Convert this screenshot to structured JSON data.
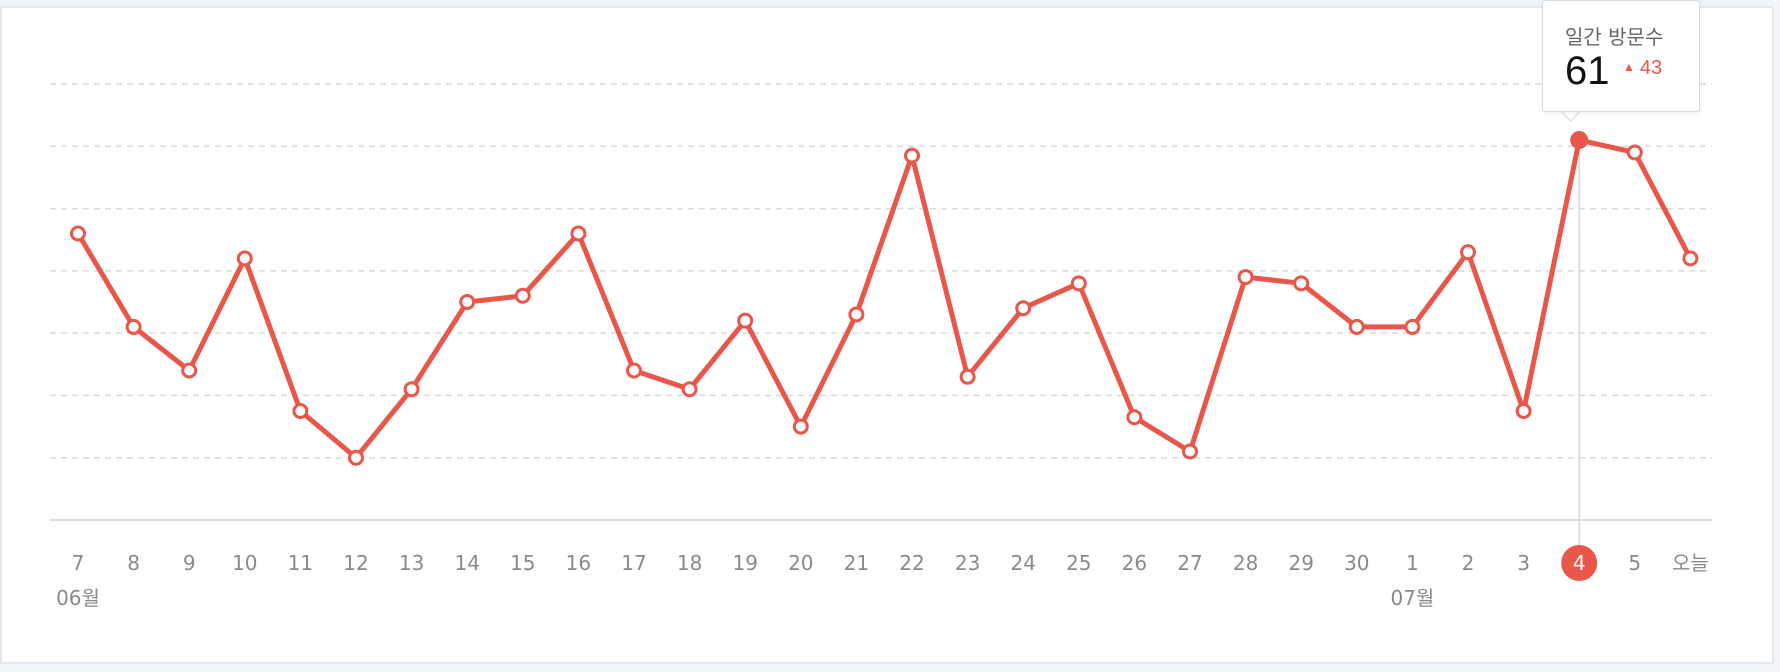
{
  "chart_data": {
    "type": "line",
    "title": "",
    "xlabel": "",
    "ylabel": "",
    "grid": true,
    "colors": {
      "line": "#e8574a",
      "grid": "#dadada",
      "axis": "#d8dde2",
      "tick_text": "#8a8a8a"
    },
    "ylim": [
      0,
      70
    ],
    "categories": [
      "7",
      "8",
      "9",
      "10",
      "11",
      "12",
      "13",
      "14",
      "15",
      "16",
      "17",
      "18",
      "19",
      "20",
      "21",
      "22",
      "23",
      "24",
      "25",
      "26",
      "27",
      "28",
      "29",
      "30",
      "1",
      "2",
      "3",
      "4",
      "5",
      "오늘"
    ],
    "month_labels": [
      {
        "index": 0,
        "label": "06월"
      },
      {
        "index": 24,
        "label": "07월"
      }
    ],
    "series": [
      {
        "values": [
          46,
          31,
          24,
          42,
          17.5,
          10,
          21,
          35,
          36,
          46,
          24,
          21,
          32,
          15,
          33,
          58.5,
          23,
          34,
          38,
          16.5,
          11,
          39,
          38,
          31,
          31,
          43,
          17.5,
          61,
          59,
          42
        ]
      }
    ],
    "highlight_index": 27
  },
  "tooltip": {
    "title": "일간 방문수",
    "value": "61",
    "change": "43",
    "change_icon": "triangle-up-icon"
  }
}
